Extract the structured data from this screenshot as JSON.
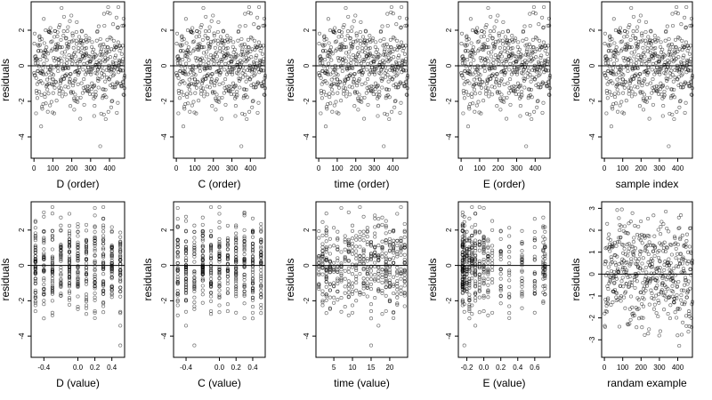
{
  "chart_data": [
    {
      "type": "scatter",
      "xlabel": "D (order)",
      "ylabel": "residuals",
      "xlim": [
        -15,
        480
      ],
      "ylim": [
        -5.2,
        3.6
      ],
      "x_ticks": [
        0,
        100,
        200,
        300,
        400
      ],
      "y_ticks": [
        -4,
        -2,
        0,
        2
      ],
      "reference_line_y": 0,
      "points_summary": {
        "n": 480,
        "x_range": [
          1,
          480
        ],
        "y_range": [
          -4.8,
          3.3
        ]
      }
    },
    {
      "type": "scatter",
      "xlabel": "C (order)",
      "ylabel": "residuals",
      "xlim": [
        -15,
        480
      ],
      "ylim": [
        -5.2,
        3.6
      ],
      "x_ticks": [
        0,
        100,
        200,
        300,
        400
      ],
      "y_ticks": [
        -4,
        -2,
        0,
        2
      ],
      "reference_line_y": 0,
      "points_summary": {
        "n": 480,
        "x_range": [
          1,
          480
        ],
        "y_range": [
          -4.8,
          3.3
        ]
      }
    },
    {
      "type": "scatter",
      "xlabel": "time (order)",
      "ylabel": "residuals",
      "xlim": [
        -15,
        480
      ],
      "ylim": [
        -5.2,
        3.6
      ],
      "x_ticks": [
        0,
        100,
        200,
        300,
        400
      ],
      "y_ticks": [
        -4,
        -2,
        0,
        2
      ],
      "reference_line_y": 0,
      "points_summary": {
        "n": 480,
        "x_range": [
          1,
          480
        ],
        "y_range": [
          -4.8,
          3.3
        ]
      }
    },
    {
      "type": "scatter",
      "xlabel": "E (order)",
      "ylabel": "residuals",
      "xlim": [
        -15,
        480
      ],
      "ylim": [
        -5.2,
        3.6
      ],
      "x_ticks": [
        0,
        100,
        200,
        300,
        400
      ],
      "y_ticks": [
        -4,
        -2,
        0,
        2
      ],
      "reference_line_y": 0,
      "points_summary": {
        "n": 480,
        "x_range": [
          1,
          480
        ],
        "y_range": [
          -4.8,
          3.3
        ]
      }
    },
    {
      "type": "scatter",
      "xlabel": "sample index",
      "ylabel": "residuals",
      "xlim": [
        -15,
        480
      ],
      "ylim": [
        -5.2,
        3.6
      ],
      "x_ticks": [
        0,
        100,
        200,
        300,
        400
      ],
      "y_ticks": [
        -4,
        -2,
        0,
        2
      ],
      "reference_line_y": 0,
      "points_summary": {
        "n": 480,
        "x_range": [
          1,
          480
        ],
        "y_range": [
          -4.8,
          3.3
        ]
      }
    },
    {
      "type": "scatter",
      "xlabel": "D (value)",
      "ylabel": "residuals",
      "xlim": [
        -0.55,
        0.55
      ],
      "ylim": [
        -5.2,
        3.6
      ],
      "x_ticks": [
        -0.4,
        0.0,
        0.2,
        0.4
      ],
      "x_tick_labels": [
        "-0.4",
        "0.0",
        "0.2",
        "0.4"
      ],
      "y_ticks": [
        -4,
        -2,
        0,
        2
      ],
      "reference_line_y": 0,
      "points_summary": {
        "n": 480,
        "x_range": [
          -0.5,
          0.5
        ],
        "y_range": [
          -4.8,
          3.3
        ]
      }
    },
    {
      "type": "scatter",
      "xlabel": "C (value)",
      "ylabel": "residuals",
      "xlim": [
        -0.55,
        0.55
      ],
      "ylim": [
        -5.2,
        3.6
      ],
      "x_ticks": [
        -0.4,
        0.0,
        0.2,
        0.4
      ],
      "x_tick_labels": [
        "-0.4",
        "0.0",
        "0.2",
        "0.4"
      ],
      "y_ticks": [
        -4,
        -2,
        0,
        2
      ],
      "reference_line_y": 0,
      "points_summary": {
        "n": 480,
        "x_range": [
          -0.5,
          0.5
        ],
        "y_range": [
          -4.8,
          3.3
        ]
      }
    },
    {
      "type": "scatter",
      "xlabel": "time (value)",
      "ylabel": "residuals",
      "xlim": [
        0.2,
        24.8
      ],
      "ylim": [
        -5.2,
        3.6
      ],
      "x_ticks": [
        5,
        10,
        15,
        20
      ],
      "y_ticks": [
        -4,
        -2,
        0,
        2
      ],
      "reference_line_y": 0,
      "points_summary": {
        "n": 480,
        "x_range": [
          1,
          24
        ],
        "y_range": [
          -4.8,
          3.3
        ]
      }
    },
    {
      "type": "scatter",
      "xlabel": "E (value)",
      "ylabel": "residuals",
      "xlim": [
        -0.3,
        0.78
      ],
      "ylim": [
        -5.2,
        3.6
      ],
      "x_ticks": [
        -0.2,
        0.0,
        0.2,
        0.4,
        0.6
      ],
      "x_tick_labels": [
        "-0.2",
        "0.0",
        "0.2",
        "0.4",
        "0.6"
      ],
      "y_ticks": [
        -4,
        -2,
        0,
        2
      ],
      "reference_line_y": 0,
      "points_summary": {
        "n": 480,
        "x_range": [
          -0.25,
          0.72
        ],
        "y_range": [
          -4.8,
          3.3
        ]
      }
    },
    {
      "type": "scatter",
      "xlabel": "randam example",
      "ylabel": "residuals",
      "xlim": [
        -15,
        480
      ],
      "ylim": [
        -3.8,
        3.3
      ],
      "x_ticks": [
        0,
        100,
        200,
        300,
        400
      ],
      "y_ticks": [
        -3,
        -2,
        -1,
        0,
        1,
        2,
        3
      ],
      "reference_line_y": 0,
      "points_summary": {
        "n": 480,
        "x_range": [
          1,
          480
        ],
        "y_range": [
          -3.5,
          3.0
        ]
      }
    }
  ]
}
